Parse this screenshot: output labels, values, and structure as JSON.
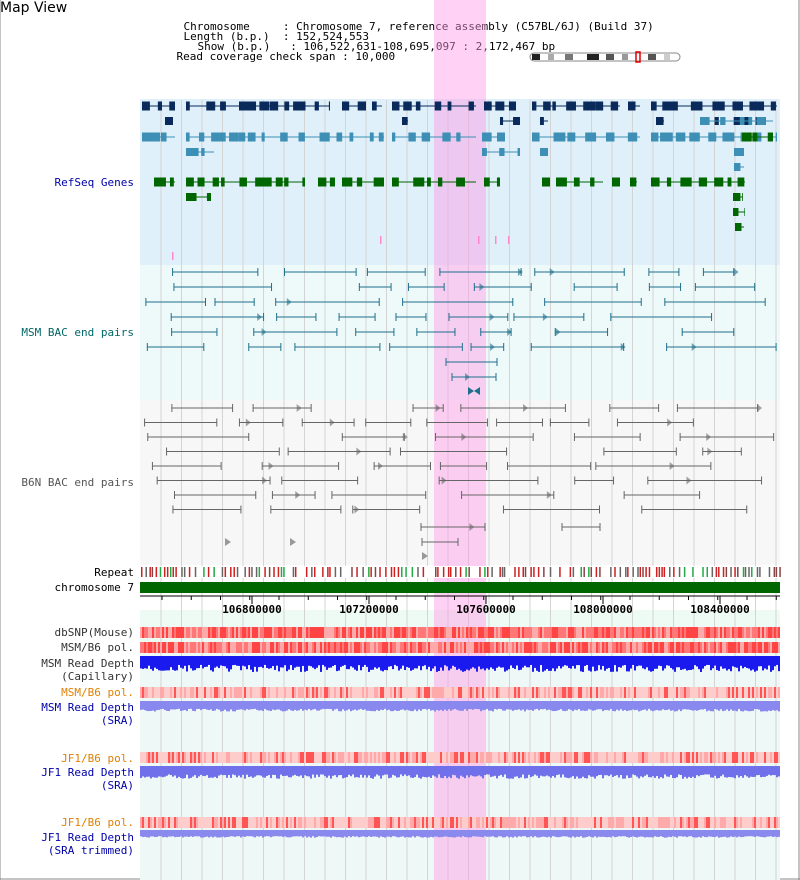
{
  "page": {
    "title": "Map View"
  },
  "info": {
    "chromosome_key": "Chromosome     ",
    "chromosome_val": "Chromosome 7, reference assembly (C57BL/6J) (Build 37)",
    "length_key": "Length (b.p.)  ",
    "length_val": "152,524,553",
    "show_key": "Show (b.p.)   ",
    "show_val": "106,522,631-108,695,097 : 2,172,467 bp",
    "coverage_key": "Read coverage check span",
    "coverage_val": "10,000"
  },
  "tracks": {
    "refseq": "RefSeq Genes",
    "msm_bac": "MSM BAC end pairs",
    "b6n_bac": "B6N BAC end pairs",
    "repeat": "Repeat",
    "chromosome": "chromosome 7",
    "dbsnp": "dbSNP(Mouse)",
    "msm_b6_pol_1": "MSM/B6 pol.",
    "msm_read_depth_cap_1": "MSM Read Depth",
    "msm_read_depth_cap_2": "(Capillary)",
    "msm_b6_pol_2": "MSM/B6 pol.",
    "msm_read_depth_sra_1": "MSM Read Depth",
    "msm_read_depth_sra_2": "(SRA)",
    "jf1_b6_pol_1": "JF1/B6 pol.",
    "jf1_read_depth_1": "JF1 Read Depth",
    "jf1_read_depth_2": "(SRA)",
    "jf1_b6_pol_2": "JF1/B6 pol.",
    "jf1_read_depth_trim_1": "JF1 Read Depth",
    "jf1_read_depth_trim_2": "(SRA trimmed)"
  },
  "axis": {
    "ticks": [
      "106800000",
      "107200000",
      "107600000",
      "108000000",
      "108400000"
    ]
  },
  "colors": {
    "refseq_label": "#0000aa",
    "msm_label": "#006666",
    "b6n_label": "#555555",
    "orange_label": "#e08000",
    "blue_label": "#0000aa",
    "highlight": "#ff99e6",
    "gene_dark": "#0a2a5c",
    "gene_mid": "#3d8fb5",
    "gene_green": "#006600"
  }
}
